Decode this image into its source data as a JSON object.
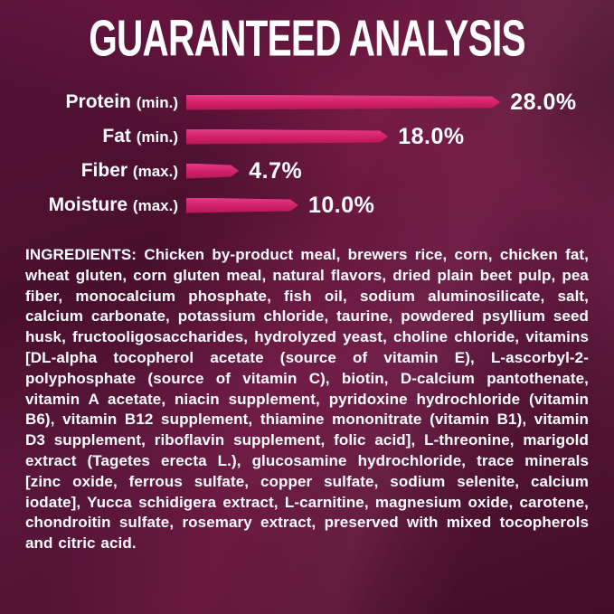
{
  "title": "GUARANTEED ANALYSIS",
  "chart_data": {
    "type": "bar",
    "orientation": "horizontal",
    "title": "GUARANTEED ANALYSIS",
    "categories": [
      "Protein",
      "Fat",
      "Fiber",
      "Moisture"
    ],
    "rows": [
      {
        "label": "Protein",
        "qualifier": "(min.)",
        "value": 28.0,
        "value_label": "28.0%"
      },
      {
        "label": "Fat",
        "qualifier": "(min.)",
        "value": 18.0,
        "value_label": "18.0%"
      },
      {
        "label": "Fiber",
        "qualifier": "(max.)",
        "value": 4.7,
        "value_label": "4.7%"
      },
      {
        "label": "Moisture",
        "qualifier": "(max.)",
        "value": 10.0,
        "value_label": "10.0%"
      }
    ],
    "unit": "%",
    "xlim": [
      0,
      30
    ],
    "grid": false,
    "legend": "none",
    "bar_color": "#d01f67"
  },
  "ingredients": {
    "heading": "INGREDIENTS:",
    "text": "Chicken by-product meal, brewers rice, corn, chicken fat, wheat gluten, corn gluten meal, natural flavors, dried plain beet pulp, pea fiber, monocalcium phosphate, fish oil, sodium aluminosilicate, salt, calcium carbonate, potassium chloride, taurine, powdered psyllium seed husk, fructooligosaccharides, hydrolyzed yeast, choline chloride, vitamins [DL-alpha tocopherol acetate (source of vitamin E), L-ascorbyl-2-polyphosphate (source of vitamin C), biotin, D-calcium pantothenate, vitamin A acetate, niacin supplement, pyridoxine hydrochloride (vitamin B6), vitamin B12 supplement, thiamine mononitrate (vitamin B1), vitamin D3 supplement, riboflavin supplement, folic acid], L-threonine, marigold extract (Tagetes erecta L.), glucosamine hydrochloride, trace minerals [zinc oxide, ferrous sulfate, copper sulfate, sodium selenite, calcium iodate], Yucca schidigera extract, L-carnitine, magnesium oxide, carotene, chondroitin sulfate, rosemary extract, preserved with mixed tocopherols and citric acid."
  },
  "colors": {
    "background": "#4a0f2d",
    "bar": "#d01f67",
    "text": "#ffffff"
  }
}
